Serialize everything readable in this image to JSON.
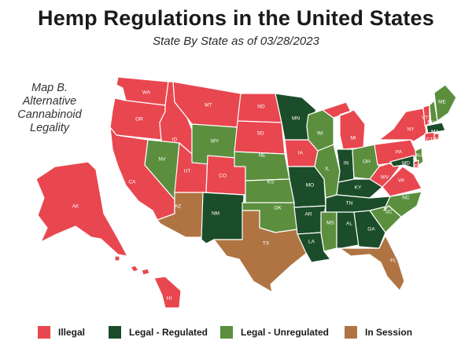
{
  "title": "Hemp Regulations in the United States",
  "subtitle": "State By State as of 03/28/2023",
  "map_label": [
    "Map B.",
    "Alternative",
    "Cannabinoid",
    "Legality"
  ],
  "colors": {
    "illegal": "#e8474f",
    "regulated": "#1c4d2a",
    "unregulated": "#5b8f3e",
    "session": "#b07443"
  },
  "legend": [
    {
      "key": "illegal",
      "label": "Illegal"
    },
    {
      "key": "regulated",
      "label": "Legal - Regulated"
    },
    {
      "key": "unregulated",
      "label": "Legal - Unregulated"
    },
    {
      "key": "session",
      "label": "In Session"
    }
  ],
  "states": {
    "WA": "illegal",
    "OR": "illegal",
    "CA": "illegal",
    "ID": "illegal",
    "MT": "illegal",
    "NV": "unregulated",
    "UT": "illegal",
    "AZ": "session",
    "WY": "unregulated",
    "CO": "illegal",
    "NM": "regulated",
    "ND": "illegal",
    "SD": "illegal",
    "NE": "unregulated",
    "KS": "unregulated",
    "OK": "unregulated",
    "TX": "session",
    "MN": "regulated",
    "IA": "illegal",
    "MO": "regulated",
    "AR": "regulated",
    "LA": "regulated",
    "WI": "unregulated",
    "IL": "unregulated",
    "MI": "illegal",
    "IN": "regulated",
    "OH": "unregulated",
    "KY": "regulated",
    "TN": "regulated",
    "MS": "unregulated",
    "AL": "regulated",
    "GA": "regulated",
    "FL": "session",
    "SC": "unregulated",
    "NC": "unregulated",
    "VA": "illegal",
    "WV": "illegal",
    "PA": "illegal",
    "NY": "illegal",
    "VT": "illegal",
    "NH": "unregulated",
    "ME": "unregulated",
    "MA": "regulated",
    "CT": "illegal",
    "RI": "illegal",
    "NJ": "unregulated",
    "DE": "illegal",
    "MD": "regulated",
    "AK": "illegal",
    "HI": "illegal"
  },
  "state_labels": {
    "WA": "WA",
    "OR": "OR",
    "CA": "CA",
    "ID": "ID",
    "MT": "MT",
    "NV": "NV",
    "UT": "UT",
    "AZ": "AZ",
    "WY": "WY",
    "CO": "CO",
    "NM": "NM",
    "ND": "ND",
    "SD": "SD",
    "NE": "NE",
    "KS": "KS",
    "OK": "OK",
    "TX": "TX",
    "MN": "MN",
    "IA": "IA",
    "MO": "MO",
    "AR": "AR",
    "LA": "LA",
    "WI": "WI",
    "IL": "IL",
    "MI": "MI",
    "IN": "IN",
    "OH": "OH",
    "KY": "KY",
    "TN": "TN",
    "MS": "MS",
    "AL": "AL",
    "GA": "GA",
    "FL": "FL",
    "SC": "SC",
    "NC": "NC",
    "VA": "VA",
    "WV": "WV",
    "PA": "PA",
    "NY": "NY",
    "VT": "VT",
    "NH": "NH",
    "ME": "ME",
    "MA": "MA",
    "CT": "CT",
    "RI": "RI",
    "NJ": "NJ",
    "DE": "DE",
    "MD": "MD",
    "AK": "AK",
    "HI": "HI"
  }
}
